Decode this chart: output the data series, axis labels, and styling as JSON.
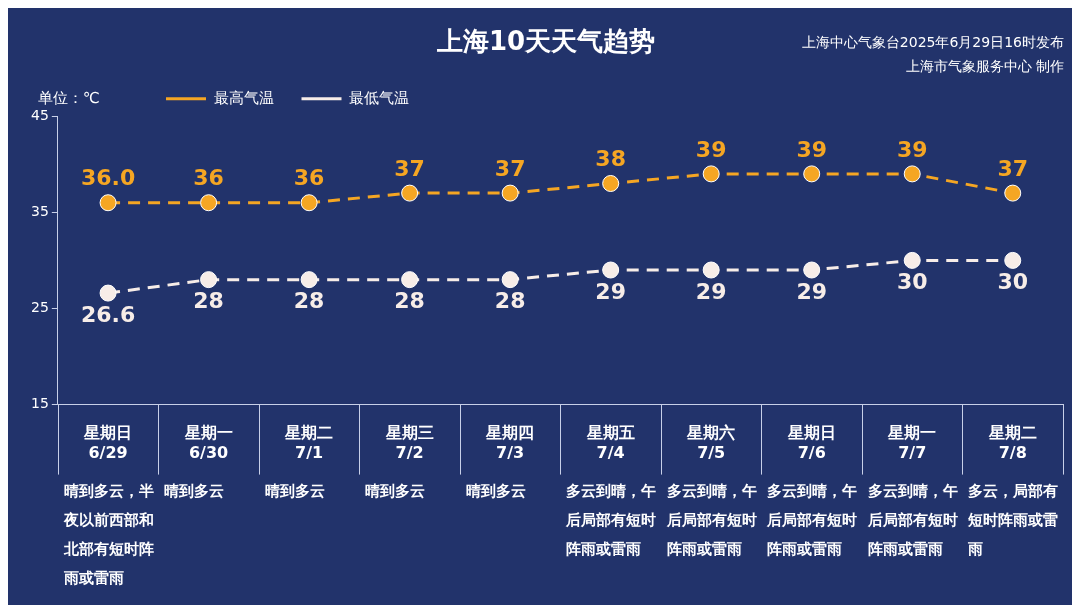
{
  "chart_data": {
    "type": "line",
    "title": "上海10天天气趋势",
    "ylabel": "单位：℃",
    "categories": [
      "星期日 6/29",
      "星期一 6/30",
      "星期二 7/1",
      "星期三 7/2",
      "星期四 7/3",
      "星期五 7/4",
      "星期六 7/5",
      "星期日 7/6",
      "星期一 7/7",
      "星期二 7/8"
    ],
    "series": [
      {
        "name": "最高气温",
        "color": "#f5a623",
        "values": [
          36,
          36,
          36,
          37,
          37,
          38,
          39,
          39,
          39,
          37
        ],
        "value_labels": [
          "36.0",
          "36",
          "36",
          "37",
          "37",
          "38",
          "39",
          "39",
          "39",
          "37"
        ]
      },
      {
        "name": "最低气温",
        "color": "#f7ede8",
        "values": [
          26.6,
          28,
          28,
          28,
          28,
          29,
          29,
          29,
          30,
          30
        ],
        "value_labels": [
          "26.6",
          "28",
          "28",
          "28",
          "28",
          "29",
          "29",
          "29",
          "30",
          "30"
        ]
      }
    ],
    "ylim": [
      15,
      45
    ],
    "yticks": [
      15,
      25,
      35,
      45
    ],
    "grid": false,
    "legend": "top left",
    "marker": "circle",
    "line_style": "dashed",
    "annotations": [
      "上海中心气象台2025年6月29日16时发布",
      "上海市气象服务中心 制作",
      "晴到多云，半夜以前西部和北部有短时阵雨或雷雨",
      "晴到多云",
      "晴到多云",
      "晴到多云",
      "晴到多云",
      "多云到晴，午后局部有短时阵雨或雷雨",
      "多云到晴，午后局部有短时阵雨或雷雨",
      "多云到晴，午后局部有短时阵雨或雷雨",
      "多云到晴，午后局部有短时阵雨或雷雨",
      "多云，局部有短时阵雨或雷雨"
    ]
  }
}
